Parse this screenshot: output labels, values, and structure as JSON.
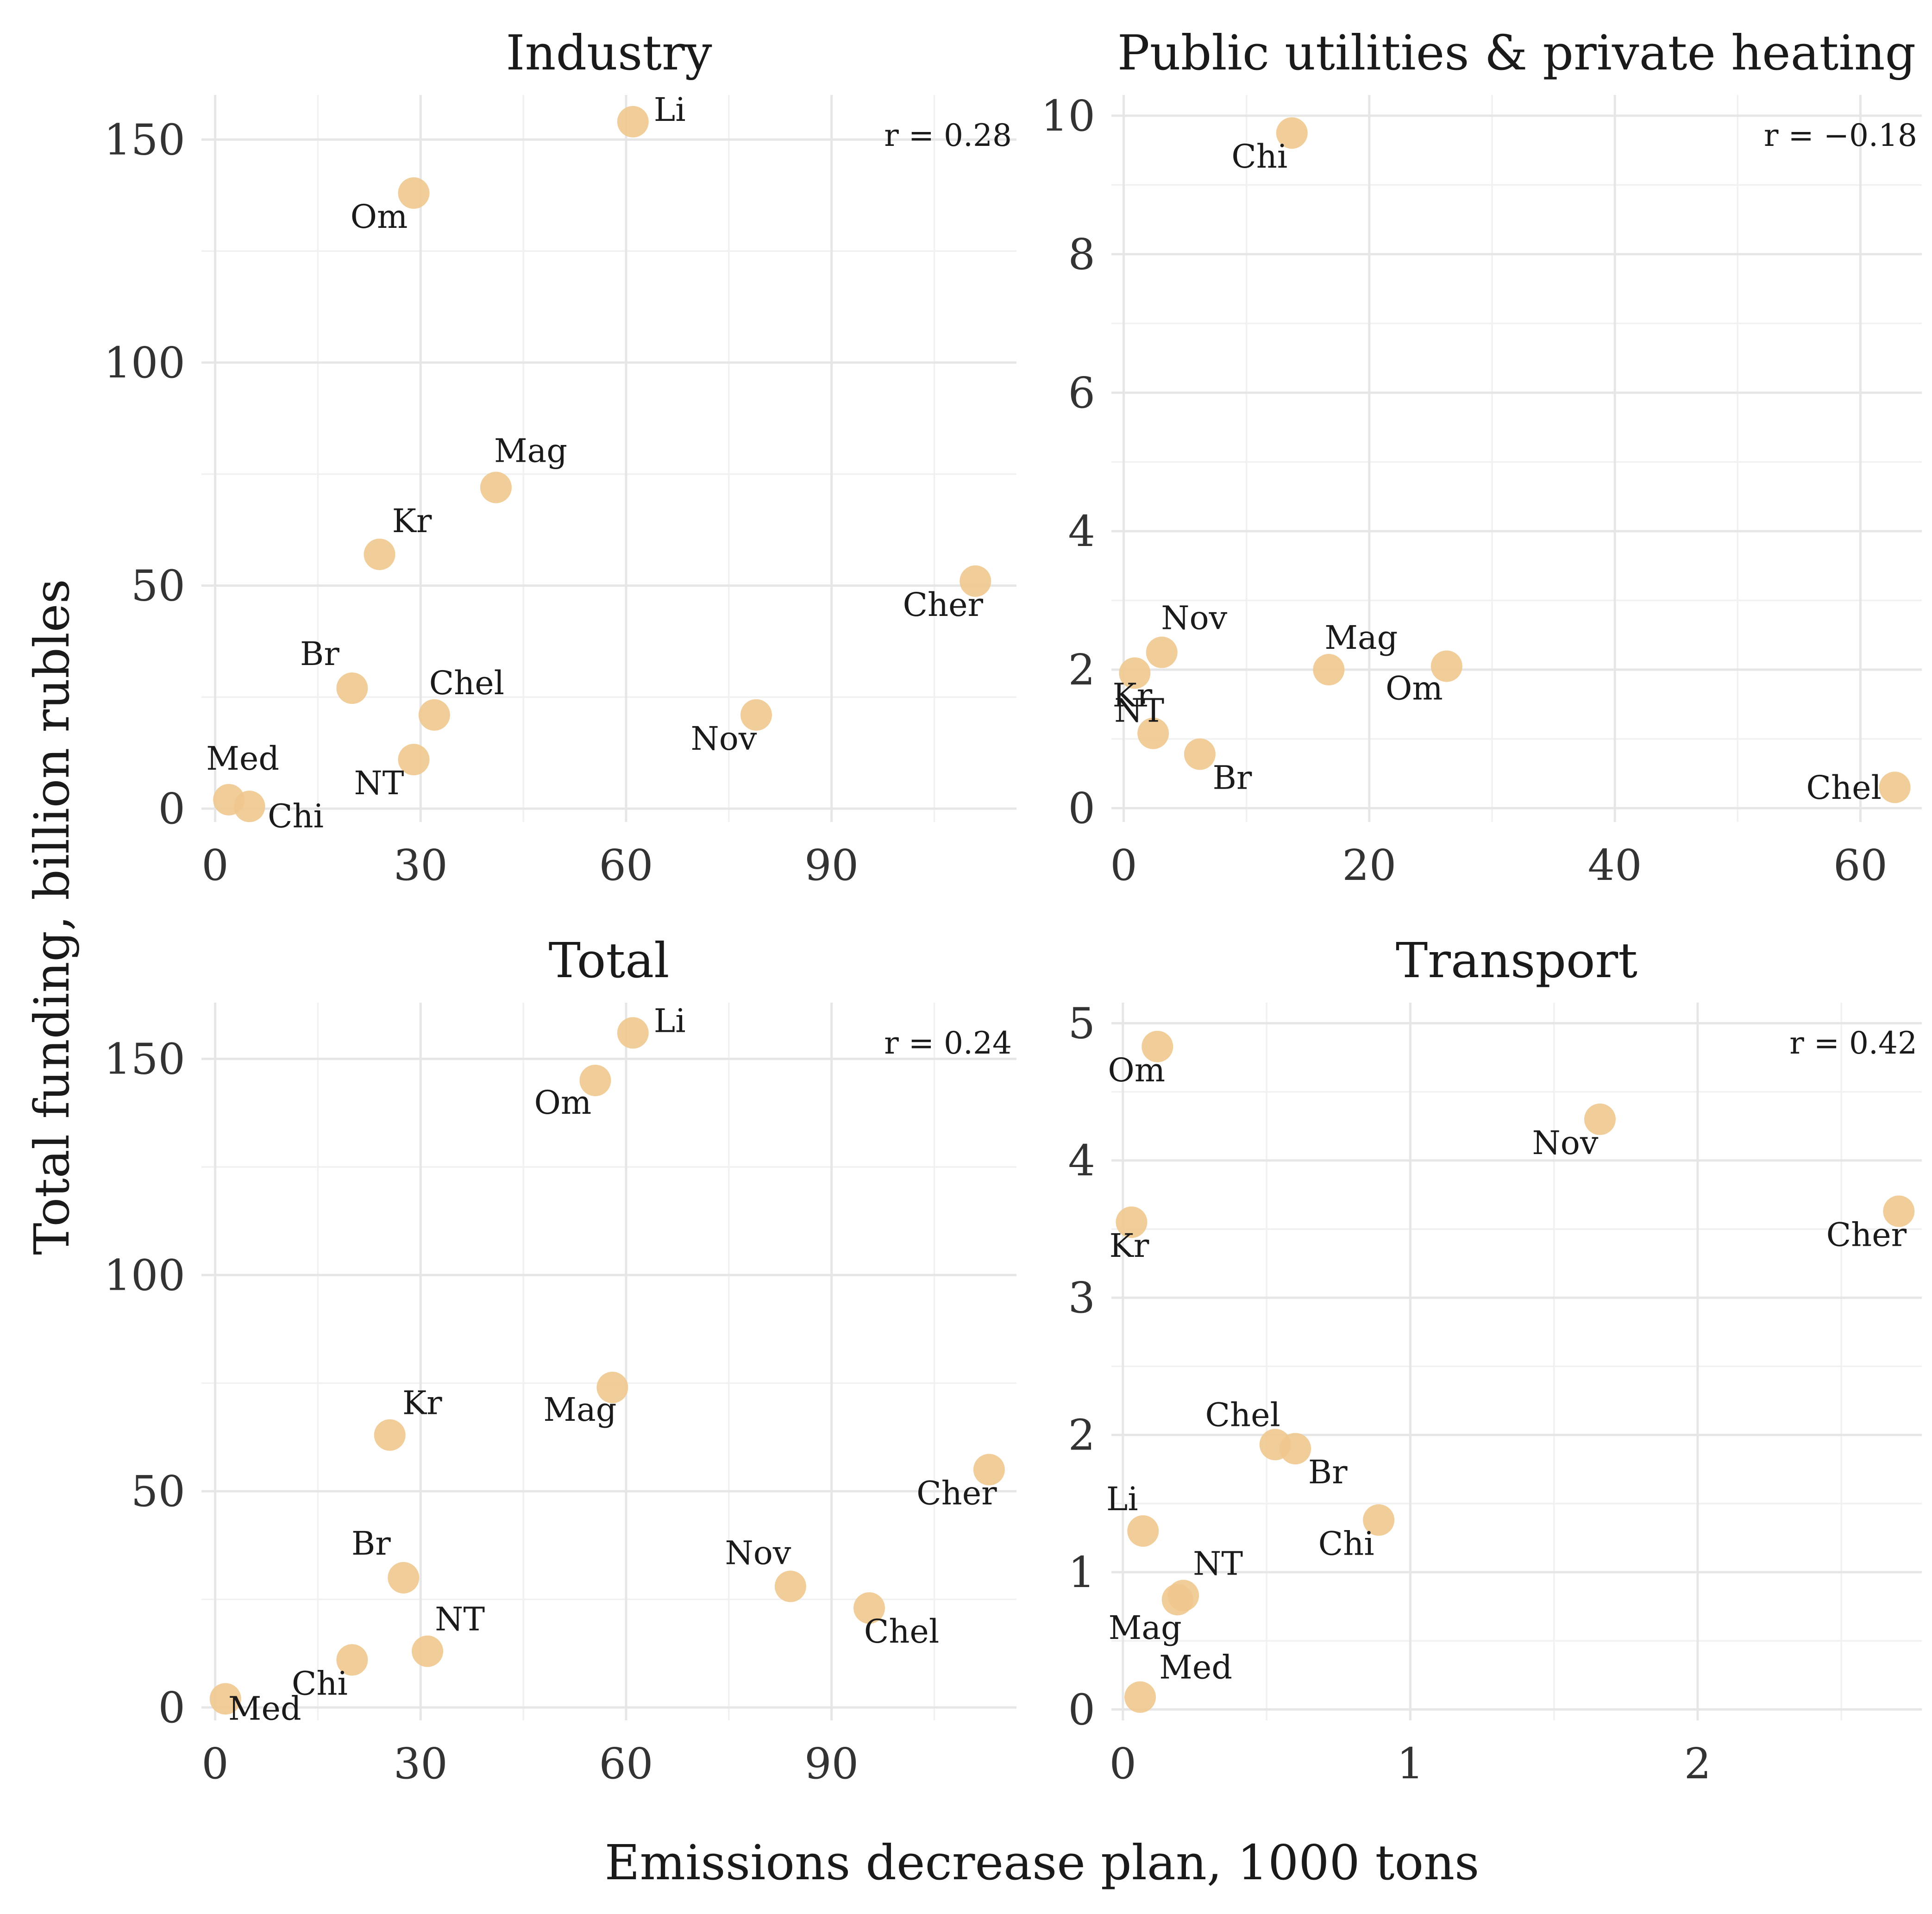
{
  "figure": {
    "xlabel": "Emissions decrease plan, 1000 tons",
    "ylabel": "Total funding, billion rubles",
    "point_color": "#f0c88e",
    "background": "#ffffff"
  },
  "chart_data": [
    {
      "type": "scatter",
      "title": "Industry",
      "annotation": "r = 0.28",
      "xlim": [
        -2,
        117
      ],
      "ylim": [
        -3,
        160
      ],
      "x_ticks": [
        0,
        30,
        60,
        90
      ],
      "y_ticks": [
        0,
        50,
        100,
        150
      ],
      "grid": true,
      "points": [
        {
          "label": "Li",
          "x": 61,
          "y": 154
        },
        {
          "label": "Om",
          "x": 29,
          "y": 138
        },
        {
          "label": "Mag",
          "x": 41,
          "y": 72
        },
        {
          "label": "Kr",
          "x": 24,
          "y": 57
        },
        {
          "label": "Cher",
          "x": 111,
          "y": 51
        },
        {
          "label": "Br",
          "x": 20,
          "y": 27
        },
        {
          "label": "Chel",
          "x": 32,
          "y": 21
        },
        {
          "label": "Nov",
          "x": 79,
          "y": 21
        },
        {
          "label": "NT",
          "x": 29,
          "y": 11
        },
        {
          "label": "Med",
          "x": 2,
          "y": 2
        },
        {
          "label": "Chi",
          "x": 5,
          "y": 0.5
        }
      ]
    },
    {
      "type": "scatter",
      "title": "Public utilities & private heating",
      "annotation": "r = −0.18",
      "xlim": [
        -1,
        65
      ],
      "ylim": [
        -0.2,
        10.3
      ],
      "x_ticks": [
        0,
        20,
        40,
        60
      ],
      "y_ticks": [
        0,
        2,
        4,
        6,
        8,
        10
      ],
      "grid": true,
      "points": [
        {
          "label": "Chi",
          "x": 13.7,
          "y": 9.75
        },
        {
          "label": "Nov",
          "x": 3.1,
          "y": 2.25
        },
        {
          "label": "Kr",
          "x": 0.9,
          "y": 1.95
        },
        {
          "label": "Mag",
          "x": 16.7,
          "y": 2.0
        },
        {
          "label": "Om",
          "x": 26.3,
          "y": 2.05
        },
        {
          "label": "NT",
          "x": 2.4,
          "y": 1.08
        },
        {
          "label": "Br",
          "x": 6.2,
          "y": 0.78
        },
        {
          "label": "Chel",
          "x": 62.8,
          "y": 0.3
        }
      ]
    },
    {
      "type": "scatter",
      "title": "Total",
      "annotation": "r = 0.24",
      "xlim": [
        -2,
        117
      ],
      "ylim": [
        -3,
        163
      ],
      "x_ticks": [
        0,
        30,
        60,
        90
      ],
      "y_ticks": [
        0,
        50,
        100,
        150
      ],
      "grid": true,
      "points": [
        {
          "label": "Li",
          "x": 61,
          "y": 156
        },
        {
          "label": "Om",
          "x": 55.5,
          "y": 145
        },
        {
          "label": "Mag",
          "x": 58,
          "y": 74
        },
        {
          "label": "Kr",
          "x": 25.5,
          "y": 63
        },
        {
          "label": "Cher",
          "x": 113,
          "y": 55
        },
        {
          "label": "Br",
          "x": 27.5,
          "y": 30
        },
        {
          "label": "Nov",
          "x": 84,
          "y": 28
        },
        {
          "label": "Chel",
          "x": 95.5,
          "y": 23
        },
        {
          "label": "NT",
          "x": 31,
          "y": 13
        },
        {
          "label": "Chi",
          "x": 20,
          "y": 11
        },
        {
          "label": "Med",
          "x": 1.5,
          "y": 2
        }
      ]
    },
    {
      "type": "scatter",
      "title": "Transport",
      "annotation": "r = 0.42",
      "xlim": [
        -0.04,
        2.78
      ],
      "ylim": [
        -0.08,
        5.15
      ],
      "x_ticks": [
        0,
        1,
        2
      ],
      "y_ticks": [
        0,
        1,
        2,
        3,
        4,
        5
      ],
      "grid": true,
      "points": [
        {
          "label": "Om",
          "x": 0.12,
          "y": 4.83
        },
        {
          "label": "Nov",
          "x": 1.66,
          "y": 4.3
        },
        {
          "label": "Cher",
          "x": 2.7,
          "y": 3.63
        },
        {
          "label": "Kr",
          "x": 0.03,
          "y": 3.55
        },
        {
          "label": "Chel",
          "x": 0.53,
          "y": 1.93
        },
        {
          "label": "Br",
          "x": 0.6,
          "y": 1.9
        },
        {
          "label": "Chi",
          "x": 0.89,
          "y": 1.38
        },
        {
          "label": "Li",
          "x": 0.07,
          "y": 1.3
        },
        {
          "label": "NT",
          "x": 0.21,
          "y": 0.83
        },
        {
          "label": "Mag",
          "x": 0.19,
          "y": 0.8
        },
        {
          "label": "Med",
          "x": 0.06,
          "y": 0.09
        }
      ]
    }
  ]
}
